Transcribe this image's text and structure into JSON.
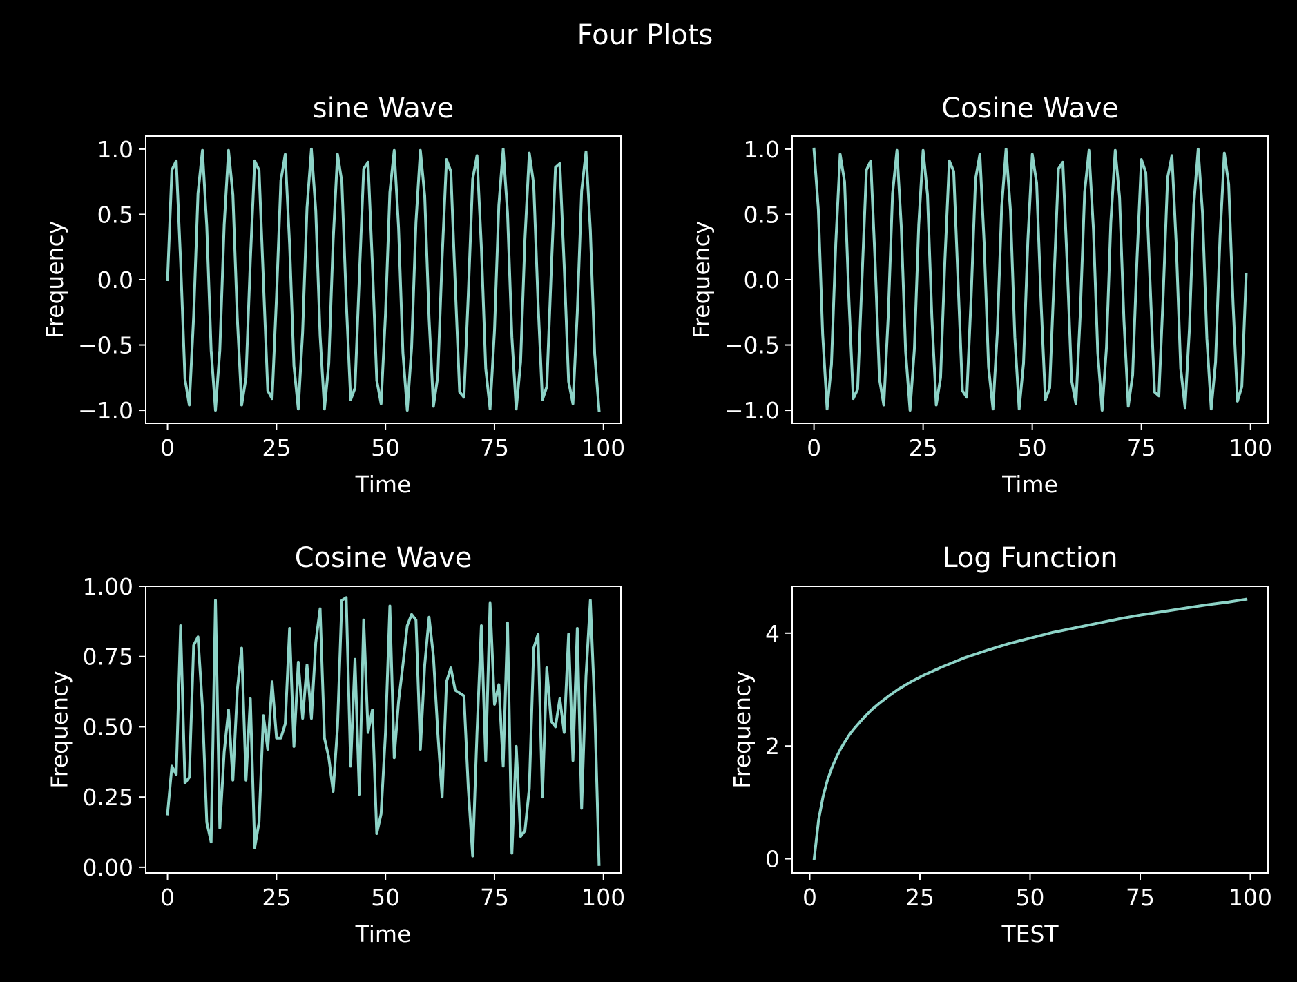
{
  "figure": {
    "title": "Four Plots",
    "background": "#000000",
    "foreground": "#ffffff",
    "line_color": "#8dd3c7"
  },
  "chart_data": [
    {
      "type": "line",
      "title": "sine Wave",
      "xlabel": "Time",
      "ylabel": "Frequency",
      "xlim": [
        -5,
        104
      ],
      "ylim": [
        -1.1,
        1.1
      ],
      "xticks": [
        0,
        25,
        50,
        75,
        100
      ],
      "xtick_labels": [
        "0",
        "25",
        "50",
        "75",
        "100"
      ],
      "yticks": [
        -1,
        -0.5,
        0,
        0.5,
        1
      ],
      "ytick_labels": [
        "−1.0",
        "−0.5",
        "0.0",
        "0.5",
        "1.0"
      ],
      "grid": false,
      "series": [
        {
          "x": [
            0,
            1,
            2,
            3,
            4,
            5,
            6,
            7,
            8,
            9,
            10,
            11,
            12,
            13,
            14,
            15,
            16,
            17,
            18,
            19,
            20,
            21,
            22,
            23,
            24,
            25,
            26,
            27,
            28,
            29,
            30,
            31,
            32,
            33,
            34,
            35,
            36,
            37,
            38,
            39,
            40,
            41,
            42,
            43,
            44,
            45,
            46,
            47,
            48,
            49,
            50,
            51,
            52,
            53,
            54,
            55,
            56,
            57,
            58,
            59,
            60,
            61,
            62,
            63,
            64,
            65,
            66,
            67,
            68,
            69,
            70,
            71,
            72,
            73,
            74,
            75,
            76,
            77,
            78,
            79,
            80,
            81,
            82,
            83,
            84,
            85,
            86,
            87,
            88,
            89,
            90,
            91,
            92,
            93,
            94,
            95,
            96,
            97,
            98,
            99
          ],
          "y": [
            0.0,
            0.84,
            0.91,
            0.14,
            -0.76,
            -0.96,
            -0.28,
            0.66,
            0.99,
            0.41,
            -0.54,
            -1.0,
            -0.54,
            0.42,
            0.99,
            0.65,
            -0.29,
            -0.96,
            -0.75,
            0.15,
            0.91,
            0.84,
            -0.01,
            -0.85,
            -0.91,
            -0.13,
            0.76,
            0.96,
            0.27,
            -0.66,
            -0.99,
            -0.4,
            0.55,
            1.0,
            0.53,
            -0.43,
            -0.99,
            -0.64,
            0.3,
            0.96,
            0.75,
            -0.16,
            -0.92,
            -0.83,
            0.02,
            0.85,
            0.9,
            0.12,
            -0.77,
            -0.95,
            -0.26,
            0.67,
            0.99,
            0.4,
            -0.56,
            -1.0,
            -0.52,
            0.44,
            0.99,
            0.64,
            -0.3,
            -0.97,
            -0.74,
            0.17,
            0.92,
            0.83,
            -0.03,
            -0.86,
            -0.9,
            -0.11,
            0.77,
            0.95,
            0.25,
            -0.68,
            -0.99,
            -0.39,
            0.57,
            1.0,
            0.51,
            -0.44,
            -0.99,
            -0.63,
            0.31,
            0.97,
            0.73,
            -0.18,
            -0.92,
            -0.82,
            0.04,
            0.86,
            0.89,
            0.11,
            -0.78,
            -0.95,
            -0.25,
            0.68,
            0.98,
            0.38,
            -0.57,
            -1.0
          ]
        }
      ]
    },
    {
      "type": "line",
      "title": "Cosine Wave",
      "xlabel": "Time",
      "ylabel": "Frequency",
      "xlim": [
        -5,
        104
      ],
      "ylim": [
        -1.1,
        1.1
      ],
      "xticks": [
        0,
        25,
        50,
        75,
        100
      ],
      "xtick_labels": [
        "0",
        "25",
        "50",
        "75",
        "100"
      ],
      "yticks": [
        -1,
        -0.5,
        0,
        0.5,
        1
      ],
      "ytick_labels": [
        "−1.0",
        "−0.5",
        "0.0",
        "0.5",
        "1.0"
      ],
      "grid": false,
      "series": [
        {
          "x": [
            0,
            1,
            2,
            3,
            4,
            5,
            6,
            7,
            8,
            9,
            10,
            11,
            12,
            13,
            14,
            15,
            16,
            17,
            18,
            19,
            20,
            21,
            22,
            23,
            24,
            25,
            26,
            27,
            28,
            29,
            30,
            31,
            32,
            33,
            34,
            35,
            36,
            37,
            38,
            39,
            40,
            41,
            42,
            43,
            44,
            45,
            46,
            47,
            48,
            49,
            50,
            51,
            52,
            53,
            54,
            55,
            56,
            57,
            58,
            59,
            60,
            61,
            62,
            63,
            64,
            65,
            66,
            67,
            68,
            69,
            70,
            71,
            72,
            73,
            74,
            75,
            76,
            77,
            78,
            79,
            80,
            81,
            82,
            83,
            84,
            85,
            86,
            87,
            88,
            89,
            90,
            91,
            92,
            93,
            94,
            95,
            96,
            97,
            98,
            99
          ],
          "y": [
            1.0,
            0.54,
            -0.42,
            -0.99,
            -0.65,
            0.28,
            0.96,
            0.75,
            -0.15,
            -0.91,
            -0.84,
            0.0,
            0.84,
            0.91,
            0.14,
            -0.76,
            -0.96,
            -0.28,
            0.66,
            0.99,
            0.41,
            -0.55,
            -1.0,
            -0.53,
            0.42,
            0.99,
            0.65,
            -0.29,
            -0.96,
            -0.75,
            0.15,
            0.91,
            0.83,
            -0.01,
            -0.85,
            -0.9,
            -0.13,
            0.77,
            0.96,
            0.27,
            -0.67,
            -0.99,
            -0.4,
            0.56,
            1.0,
            0.53,
            -0.44,
            -0.99,
            -0.64,
            0.3,
            0.96,
            0.74,
            -0.16,
            -0.92,
            -0.83,
            0.02,
            0.85,
            0.9,
            0.12,
            -0.77,
            -0.95,
            -0.26,
            0.67,
            0.99,
            0.39,
            -0.56,
            -1.0,
            -0.52,
            0.44,
            0.99,
            0.63,
            -0.31,
            -0.97,
            -0.73,
            0.17,
            0.92,
            0.82,
            -0.03,
            -0.86,
            -0.89,
            -0.11,
            0.78,
            0.95,
            0.25,
            -0.68,
            -0.98,
            -0.38,
            0.57,
            1.0,
            0.51,
            -0.45,
            -0.99,
            -0.63,
            0.32,
            0.97,
            0.73,
            -0.18,
            -0.93,
            -0.82,
            0.04
          ]
        }
      ]
    },
    {
      "type": "line",
      "title": "Cosine Wave",
      "xlabel": "Time",
      "ylabel": "Frequency",
      "xlim": [
        -5,
        104
      ],
      "ylim": [
        -0.02,
        1.0
      ],
      "xticks": [
        0,
        25,
        50,
        75,
        100
      ],
      "xtick_labels": [
        "0",
        "25",
        "50",
        "75",
        "100"
      ],
      "yticks": [
        0,
        0.25,
        0.5,
        0.75,
        1.0
      ],
      "ytick_labels": [
        "0.00",
        "0.25",
        "0.50",
        "0.75",
        "1.00"
      ],
      "grid": false,
      "series": [
        {
          "x": [
            0,
            1,
            2,
            3,
            4,
            5,
            6,
            7,
            8,
            9,
            10,
            11,
            12,
            13,
            14,
            15,
            16,
            17,
            18,
            19,
            20,
            21,
            22,
            23,
            24,
            25,
            26,
            27,
            28,
            29,
            30,
            31,
            32,
            33,
            34,
            35,
            36,
            37,
            38,
            39,
            40,
            41,
            42,
            43,
            44,
            45,
            46,
            47,
            48,
            49,
            50,
            51,
            52,
            53,
            54,
            55,
            56,
            57,
            58,
            59,
            60,
            61,
            62,
            63,
            64,
            65,
            66,
            67,
            68,
            69,
            70,
            71,
            72,
            73,
            74,
            75,
            76,
            77,
            78,
            79,
            80,
            81,
            82,
            83,
            84,
            85,
            86,
            87,
            88,
            89,
            90,
            91,
            92,
            93,
            94,
            95,
            96,
            97,
            98,
            99
          ],
          "y": [
            0.19,
            0.36,
            0.33,
            0.86,
            0.3,
            0.32,
            0.79,
            0.82,
            0.57,
            0.16,
            0.09,
            0.95,
            0.14,
            0.41,
            0.56,
            0.31,
            0.63,
            0.78,
            0.31,
            0.6,
            0.07,
            0.16,
            0.54,
            0.42,
            0.66,
            0.46,
            0.46,
            0.51,
            0.85,
            0.43,
            0.73,
            0.53,
            0.72,
            0.53,
            0.8,
            0.92,
            0.46,
            0.39,
            0.27,
            0.5,
            0.95,
            0.96,
            0.36,
            0.74,
            0.26,
            0.88,
            0.48,
            0.56,
            0.12,
            0.19,
            0.48,
            0.93,
            0.39,
            0.59,
            0.72,
            0.86,
            0.9,
            0.88,
            0.42,
            0.72,
            0.89,
            0.75,
            0.48,
            0.25,
            0.66,
            0.71,
            0.63,
            0.62,
            0.61,
            0.28,
            0.04,
            0.48,
            0.86,
            0.38,
            0.94,
            0.58,
            0.65,
            0.36,
            0.87,
            0.05,
            0.43,
            0.11,
            0.13,
            0.28,
            0.78,
            0.83,
            0.25,
            0.71,
            0.52,
            0.5,
            0.6,
            0.48,
            0.83,
            0.38,
            0.85,
            0.21,
            0.68,
            0.95,
            0.57,
            0.01
          ]
        }
      ]
    },
    {
      "type": "line",
      "title": "Log Function",
      "xlabel": "TEST",
      "ylabel": "Frequency",
      "xlim": [
        -4,
        104
      ],
      "ylim": [
        -0.25,
        4.83
      ],
      "xticks": [
        0,
        25,
        50,
        75,
        100
      ],
      "xtick_labels": [
        "0",
        "25",
        "50",
        "75",
        "100"
      ],
      "yticks": [
        0,
        2,
        4
      ],
      "ytick_labels": [
        "0",
        "2",
        "4"
      ],
      "grid": false,
      "series": [
        {
          "x": [
            1,
            2,
            3,
            4,
            5,
            6,
            7,
            8,
            9,
            10,
            12,
            14,
            16,
            18,
            20,
            23,
            26,
            30,
            35,
            40,
            45,
            50,
            55,
            60,
            65,
            70,
            75,
            80,
            85,
            90,
            95,
            99
          ],
          "y": [
            0.0,
            0.69,
            1.1,
            1.39,
            1.61,
            1.79,
            1.95,
            2.08,
            2.2,
            2.3,
            2.48,
            2.64,
            2.77,
            2.89,
            3.0,
            3.14,
            3.26,
            3.4,
            3.56,
            3.69,
            3.81,
            3.91,
            4.01,
            4.09,
            4.17,
            4.25,
            4.32,
            4.38,
            4.44,
            4.5,
            4.55,
            4.6
          ]
        }
      ]
    }
  ]
}
